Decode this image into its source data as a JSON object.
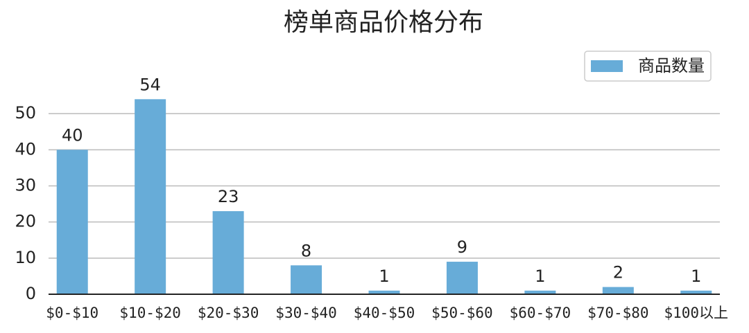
{
  "chart_data": {
    "type": "bar",
    "title": "榜单商品价格分布",
    "categories": [
      "$0-$10",
      "$10-$20",
      "$20-$30",
      "$30-$40",
      "$40-$50",
      "$50-$60",
      "$60-$70",
      "$70-$80",
      "$100以上"
    ],
    "series": [
      {
        "name": "商品数量",
        "color": "#67acd8",
        "values": [
          40,
          54,
          23,
          8,
          1,
          9,
          1,
          2,
          1
        ]
      }
    ],
    "ylim": [
      0,
      60
    ],
    "yticks": [
      0,
      10,
      20,
      30,
      40,
      50
    ],
    "grid": true,
    "legend": "upper right"
  }
}
